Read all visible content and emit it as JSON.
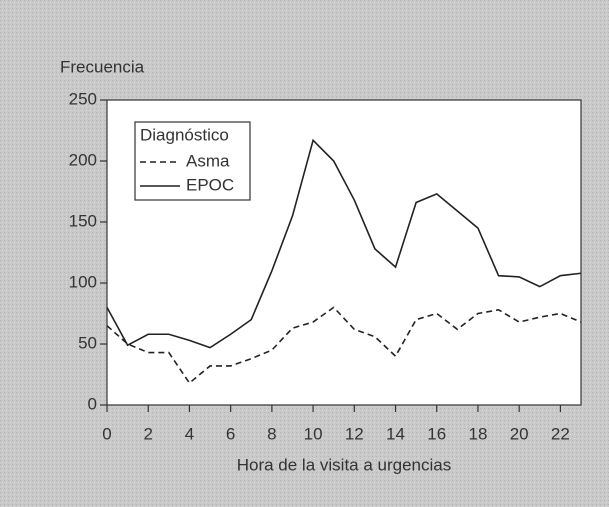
{
  "chart_data": {
    "type": "line",
    "y_label": "Frecuencia",
    "x_label": "Hora de la visita a urgencias",
    "legend_title": "Diagnóstico",
    "legend": "upper left",
    "x": [
      0,
      1,
      2,
      3,
      4,
      5,
      6,
      7,
      8,
      9,
      10,
      11,
      12,
      13,
      14,
      15,
      16,
      17,
      18,
      19,
      20,
      21,
      22,
      23
    ],
    "series": [
      {
        "name": "Asma",
        "color": "#222222",
        "style": "dashed",
        "values": [
          65,
          50,
          43,
          43,
          18,
          32,
          32,
          38,
          45,
          63,
          68,
          80,
          62,
          56,
          40,
          70,
          75,
          62,
          75,
          78,
          68,
          72,
          75,
          68
        ]
      },
      {
        "name": "EPOC",
        "color": "#222222",
        "style": "solid",
        "values": [
          80,
          49,
          58,
          58,
          53,
          47,
          58,
          70,
          110,
          155,
          217,
          200,
          168,
          128,
          113,
          166,
          173,
          159,
          145,
          106,
          105,
          97,
          106,
          108
        ]
      }
    ],
    "xlim": [
      0,
      23
    ],
    "xticks": [
      0,
      2,
      4,
      6,
      8,
      10,
      12,
      14,
      16,
      18,
      20,
      22
    ],
    "ylim": [
      0,
      250
    ],
    "yticks": [
      0,
      50,
      100,
      150,
      200,
      250
    ]
  }
}
